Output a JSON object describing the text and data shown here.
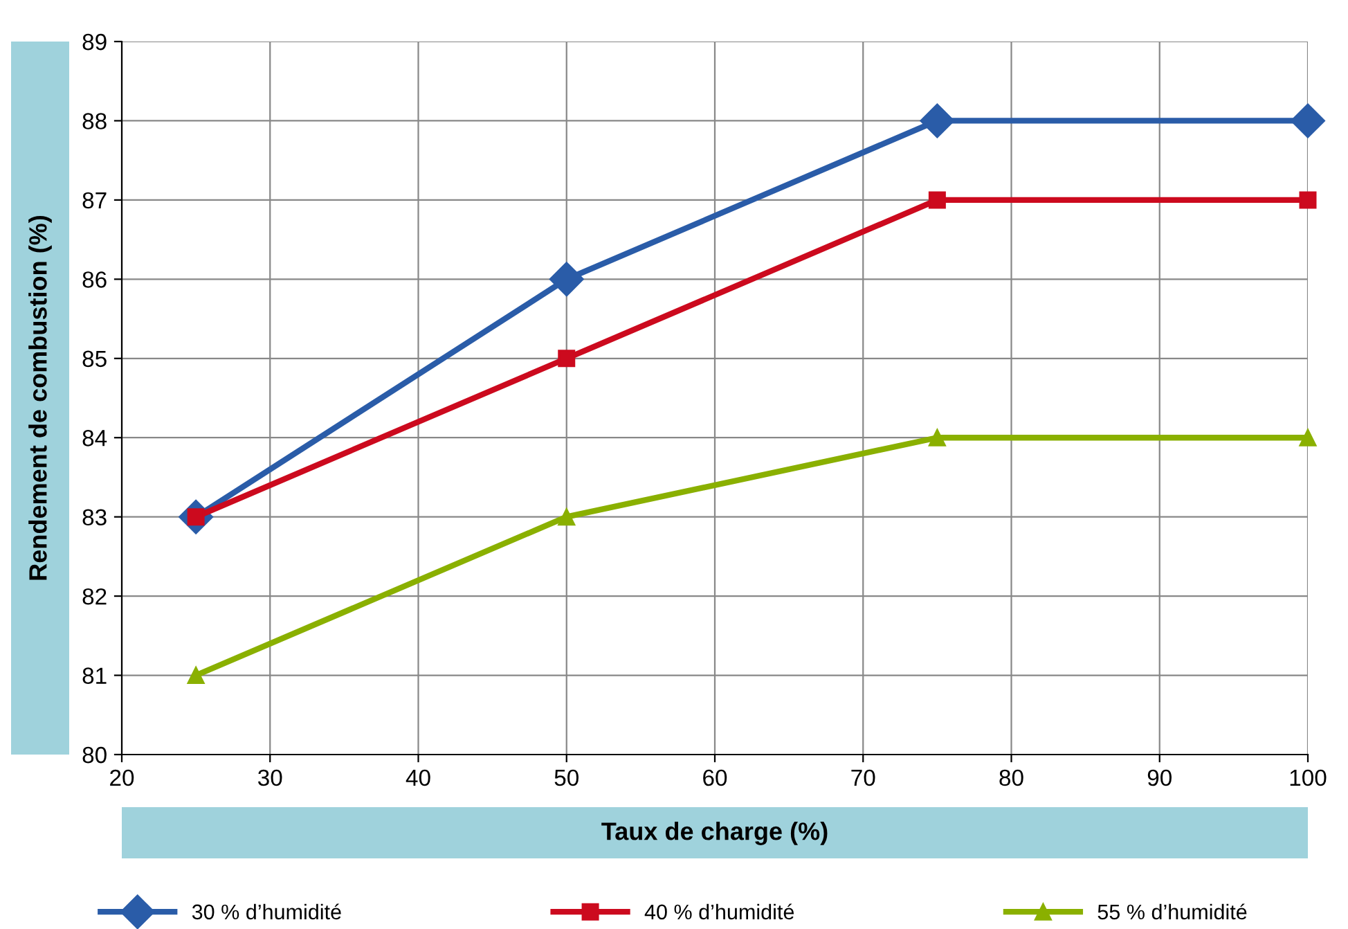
{
  "chart_data": {
    "type": "line",
    "xlabel": "Taux de charge (%)",
    "ylabel": "Rendement de combustion (%)",
    "x": [
      25,
      50,
      75,
      100
    ],
    "series": [
      {
        "name": "30 % d’humidité",
        "color": "#2a5ca8",
        "marker": "diamond",
        "values": [
          83,
          86,
          88,
          88
        ]
      },
      {
        "name": "40 % d’humidité",
        "color": "#cc0a1e",
        "marker": "square",
        "values": [
          83,
          85,
          87,
          87
        ]
      },
      {
        "name": "55 % d’humidité",
        "color": "#8ab000",
        "marker": "triangle",
        "values": [
          81,
          83,
          84,
          84
        ]
      }
    ],
    "xlim": [
      20,
      100
    ],
    "xticks": [
      20,
      30,
      40,
      50,
      60,
      70,
      80,
      90,
      100
    ],
    "ylim": [
      80,
      89
    ],
    "yticks": [
      80,
      81,
      82,
      83,
      84,
      85,
      86,
      87,
      88,
      89
    ],
    "grid": true,
    "legend": "bottom",
    "line_style": "solid"
  }
}
